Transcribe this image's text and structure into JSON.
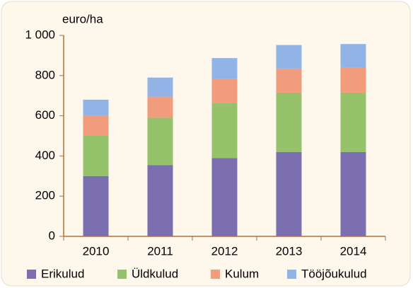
{
  "chart_data": {
    "type": "stacked-bar",
    "y_label": "euro/ha",
    "categories": [
      "2010",
      "2011",
      "2012",
      "2013",
      "2014"
    ],
    "series": [
      {
        "name": "Erikulud",
        "color": "#7b6fb0",
        "values": [
          300,
          355,
          390,
          420,
          420
        ]
      },
      {
        "name": "Üldkulud",
        "color": "#95c26b",
        "values": [
          200,
          235,
          275,
          295,
          295
        ]
      },
      {
        "name": "Kulum",
        "color": "#f19c7c",
        "values": [
          100,
          105,
          120,
          120,
          125
        ]
      },
      {
        "name": "Tööjõukulud",
        "color": "#91b3e6",
        "values": [
          80,
          95,
          102,
          117,
          117
        ]
      }
    ],
    "ylim": [
      0,
      1000
    ],
    "yticks": [
      0,
      200,
      400,
      600,
      800,
      {
        "value": 1000,
        "label": "1 000"
      }
    ],
    "grid": false,
    "legend": "bottom"
  }
}
